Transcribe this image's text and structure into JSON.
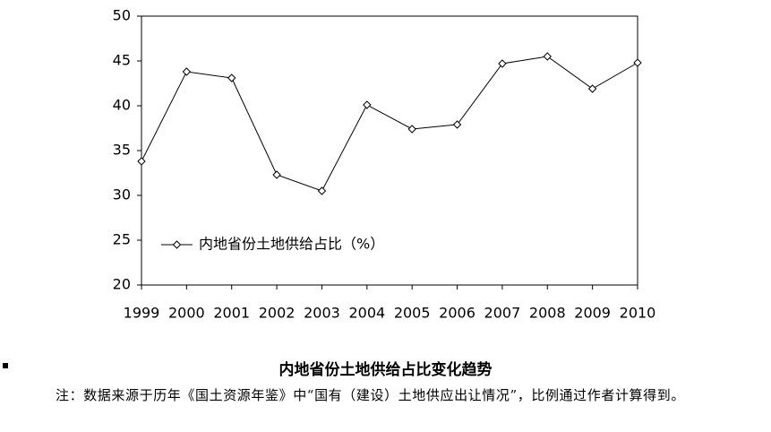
{
  "chart_data": {
    "type": "line",
    "categories": [
      "1999",
      "2000",
      "2001",
      "2002",
      "2003",
      "2004",
      "2005",
      "2006",
      "2007",
      "2008",
      "2009",
      "2010"
    ],
    "series": [
      {
        "name": "内地省份土地供给占比（%）",
        "color": "#000000",
        "values": [
          33.8,
          43.8,
          43.1,
          32.3,
          30.5,
          40.1,
          37.4,
          37.9,
          44.7,
          45.5,
          41.9,
          44.8
        ]
      }
    ],
    "ylim": [
      20,
      50
    ],
    "yticks": [
      20,
      25,
      30,
      35,
      40,
      45,
      50
    ],
    "grid": false,
    "legend": "lower-left"
  },
  "caption": "内地省份土地供给占比变化趋势",
  "note": "注：数据来源于历年《国土资源年鉴》中“国有（建设）土地供应出让情况”，比例通过作者计算得到。"
}
